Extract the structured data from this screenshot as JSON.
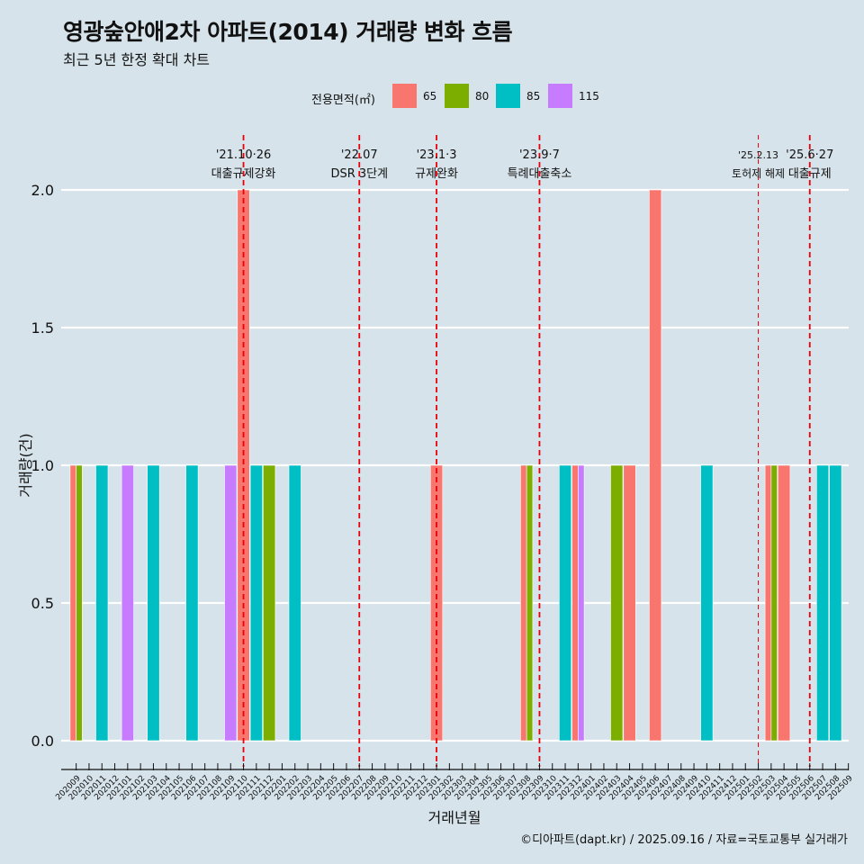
{
  "header": {
    "title": "영광숲안애2차 아파트(2014) 거래량 변화 흐름",
    "subtitle": "최근 5년 한정 확대 차트"
  },
  "legend": {
    "title": "전용면적(㎡)",
    "items": [
      {
        "label": "65",
        "color": "#f8766d"
      },
      {
        "label": "80",
        "color": "#7cae00"
      },
      {
        "label": "85",
        "color": "#00bfc4"
      },
      {
        "label": "115",
        "color": "#c77cff"
      }
    ]
  },
  "caption": "©디아파트(dapt.kr) / 2025.09.16 / 자료=국토교통부 실거래가",
  "chart_data": {
    "type": "bar",
    "xlabel": "거래년월",
    "ylabel": "거래량(건)",
    "ylim": [
      -0.08,
      2.1
    ],
    "yticks": [
      0.0,
      0.5,
      1.0,
      1.5,
      2.0
    ],
    "ytick_labels": [
      "0.0",
      "0.5",
      "1.0",
      "1.5",
      "2.0"
    ],
    "grid": true,
    "legend_position": "top",
    "categories": [
      "202009",
      "202010",
      "202011",
      "202012",
      "202101",
      "202102",
      "202103",
      "202104",
      "202105",
      "202106",
      "202107",
      "202108",
      "202109",
      "202110",
      "202111",
      "202112",
      "202201",
      "202202",
      "202203",
      "202204",
      "202205",
      "202206",
      "202207",
      "202208",
      "202209",
      "202210",
      "202211",
      "202212",
      "202301",
      "202302",
      "202303",
      "202304",
      "202305",
      "202306",
      "202307",
      "202308",
      "202309",
      "202310",
      "202311",
      "202312",
      "202401",
      "202402",
      "202403",
      "202404",
      "202405",
      "202406",
      "202407",
      "202408",
      "202409",
      "202410",
      "202411",
      "202412",
      "202501",
      "202502",
      "202503",
      "202504",
      "202505",
      "202506",
      "202507",
      "202508",
      "202509"
    ],
    "bars": [
      {
        "month": "202009",
        "area": "65",
        "value": 1
      },
      {
        "month": "202009",
        "area": "80",
        "value": 1
      },
      {
        "month": "202011",
        "area": "85",
        "value": 1
      },
      {
        "month": "202101",
        "area": "115",
        "value": 1
      },
      {
        "month": "202103",
        "area": "85",
        "value": 1
      },
      {
        "month": "202106",
        "area": "85",
        "value": 1
      },
      {
        "month": "202109",
        "area": "115",
        "value": 1
      },
      {
        "month": "202110",
        "area": "65",
        "value": 2
      },
      {
        "month": "202111",
        "area": "85",
        "value": 1
      },
      {
        "month": "202112",
        "area": "80",
        "value": 1
      },
      {
        "month": "202202",
        "area": "85",
        "value": 1
      },
      {
        "month": "202301",
        "area": "65",
        "value": 1
      },
      {
        "month": "202308",
        "area": "65",
        "value": 1
      },
      {
        "month": "202308",
        "area": "80",
        "value": 1
      },
      {
        "month": "202311",
        "area": "85",
        "value": 1
      },
      {
        "month": "202312",
        "area": "65",
        "value": 1
      },
      {
        "month": "202312",
        "area": "115",
        "value": 1
      },
      {
        "month": "202403",
        "area": "80",
        "value": 1
      },
      {
        "month": "202404",
        "area": "65",
        "value": 1
      },
      {
        "month": "202406",
        "area": "65",
        "value": 2
      },
      {
        "month": "202410",
        "area": "85",
        "value": 1
      },
      {
        "month": "202503",
        "area": "65",
        "value": 1
      },
      {
        "month": "202503",
        "area": "80",
        "value": 1
      },
      {
        "month": "202504",
        "area": "65",
        "value": 1
      },
      {
        "month": "202507",
        "area": "85",
        "value": 1
      },
      {
        "month": "202508",
        "area": "85",
        "value": 1
      }
    ],
    "events": [
      {
        "date": "'21.10·26",
        "label": "대출규제강화",
        "month": "202110",
        "style": "thick"
      },
      {
        "date": "'22.07",
        "label": "DSR 3단계",
        "month": "202207",
        "style": "thick"
      },
      {
        "date": "'23.1·3",
        "label": "규제완화",
        "month": "202301",
        "style": "thick"
      },
      {
        "date": "'23.9·7",
        "label": "특례대출축소",
        "month": "202309",
        "style": "thick"
      },
      {
        "date": "'25.2.13",
        "label": "토허제 해제",
        "month": "202502",
        "style": "thin"
      },
      {
        "date": "'25.6·27",
        "label": "대출규제",
        "month": "202506",
        "style": "thick"
      }
    ]
  }
}
